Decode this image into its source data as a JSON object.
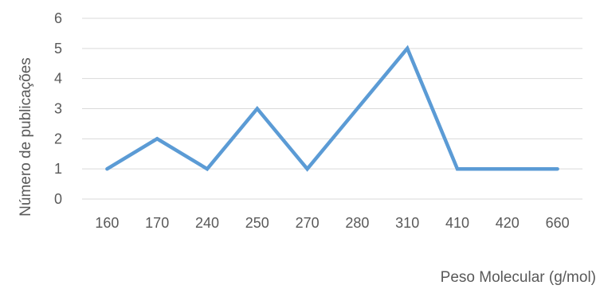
{
  "chart_data": {
    "type": "line",
    "categories": [
      "160",
      "170",
      "240",
      "250",
      "270",
      "280",
      "310",
      "410",
      "420",
      "660"
    ],
    "series": [
      {
        "values": [
          1,
          2,
          1,
          3,
          1,
          3,
          5,
          1,
          1,
          1
        ],
        "color": "#5b9bd5"
      }
    ],
    "xlabel": "Peso Molecular (g/mol)",
    "ylabel": "Número de publicações",
    "ylim": [
      0,
      6
    ],
    "yticks": [
      0,
      1,
      2,
      3,
      4,
      5,
      6
    ],
    "grid": "horizontal",
    "gridColor": "#d9d9d9",
    "legend": "none"
  }
}
